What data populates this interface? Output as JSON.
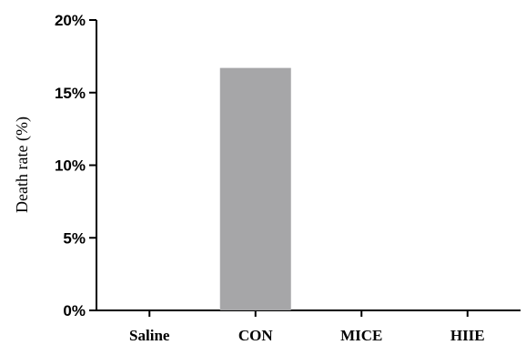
{
  "chart_data": {
    "type": "bar",
    "categories": [
      "Saline",
      "CON",
      "MICE",
      "HIIE"
    ],
    "values": [
      0,
      16.7,
      0,
      0
    ],
    "ylabel": "Death rate (%)",
    "xlabel": "",
    "ylim": [
      0,
      20
    ],
    "yticks": [
      0,
      5,
      10,
      15,
      20
    ],
    "ytick_labels": [
      "0%",
      "5%",
      "10%",
      "15%",
      "20%"
    ],
    "bar_color": "#a6a6a8",
    "grid": false,
    "legend": "none"
  }
}
